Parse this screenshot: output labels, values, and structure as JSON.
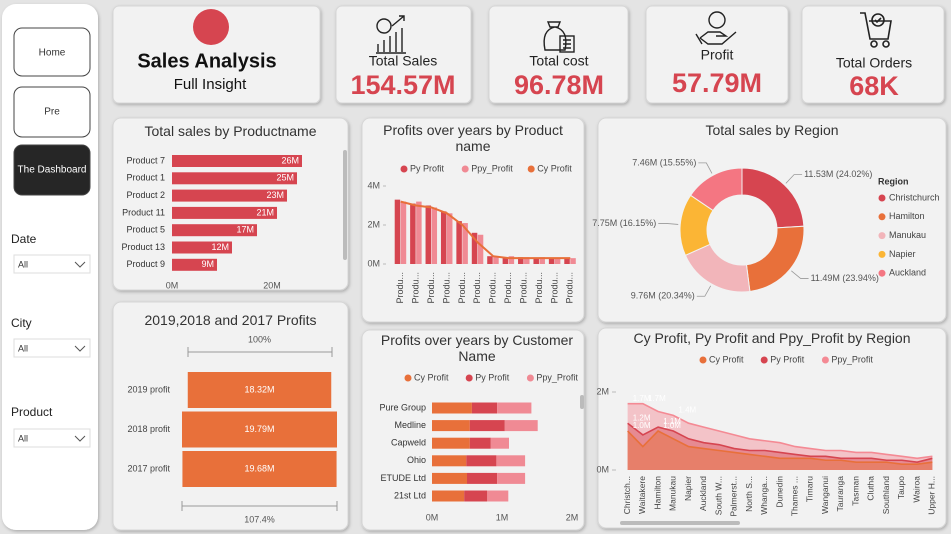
{
  "nav": {
    "buttons": [
      "Home",
      "Pre",
      "The Dashboard"
    ]
  },
  "filters": [
    {
      "label": "Date",
      "value": "All"
    },
    {
      "label": "City",
      "value": "All"
    },
    {
      "label": "Product",
      "value": "All"
    }
  ],
  "header": {
    "title": "Sales Analysis",
    "subtitle": "Full Insight"
  },
  "kpis": [
    {
      "label": "Total Sales",
      "value": "154.57M"
    },
    {
      "label": "Total cost",
      "value": "96.78M"
    },
    {
      "label": "Profit",
      "value": "57.79M"
    },
    {
      "label": "Total Orders",
      "value": "68K"
    }
  ],
  "chart_data": [
    {
      "type": "hbar",
      "title": "Total sales by Productname",
      "categories": [
        "Product 7",
        "Product 1",
        "Product 2",
        "Product 11",
        "Product 5",
        "Product 13",
        "Product 9"
      ],
      "values": [
        26,
        25,
        23,
        21,
        17,
        12,
        9
      ],
      "value_labels": [
        "26M",
        "25M",
        "23M",
        "21M",
        "17M",
        "12M",
        "9M"
      ],
      "color": "#d64550",
      "xlim": [
        0,
        33
      ],
      "xticks": [
        {
          "value": 0,
          "label": "0M"
        },
        {
          "value": 20,
          "label": "20M"
        }
      ]
    },
    {
      "type": "bar",
      "title": "Profits over years by Product name",
      "categories": [
        "Produ...",
        "Produ...",
        "Produ...",
        "Produ...",
        "Produ...",
        "Produ...",
        "Produ...",
        "Produ...",
        "Produ...",
        "Produ...",
        "Produ...",
        "Produ..."
      ],
      "series": [
        {
          "name": "Py Profit",
          "color": "#d64550",
          "values": [
            3.3,
            3.1,
            3.0,
            2.7,
            2.2,
            1.6,
            0.4,
            0.35,
            0.35,
            0.3,
            0.3,
            0.3
          ]
        },
        {
          "name": "Ppy_Profit",
          "color": "#f08a94",
          "values": [
            3.2,
            3.2,
            2.9,
            2.6,
            2.1,
            1.5,
            0.4,
            0.4,
            0.35,
            0.35,
            0.3,
            0.3
          ]
        },
        {
          "name": "Cy Profit",
          "color": "#e8703a",
          "mark": "line",
          "values": [
            3.2,
            3.0,
            2.9,
            2.6,
            2.0,
            1.1,
            0.4,
            0.3,
            0.3,
            0.3,
            0.3,
            0.3
          ]
        }
      ],
      "ylim": [
        0,
        4.5
      ],
      "yticks": [
        {
          "value": 0,
          "label": "0M"
        },
        {
          "value": 2,
          "label": "2M"
        },
        {
          "value": 4,
          "label": "4M"
        }
      ]
    },
    {
      "type": "pie",
      "donut": true,
      "title": "Total sales by Region",
      "legend_title": "Region",
      "legend": "right",
      "categories": [
        "Christchurch",
        "Hamilton",
        "Manukau",
        "Napier",
        "Auckland"
      ],
      "values": [
        11.53,
        11.49,
        9.76,
        7.75,
        7.46
      ],
      "value_labels": [
        "11.53M (24.02%)",
        "11.49M (23.94%)",
        "9.76M (20.34%)",
        "7.75M (16.15%)",
        "7.46M (15.55%)"
      ],
      "colors": [
        "#d64550",
        "#e8703a",
        "#f2b5ba",
        "#fbb535",
        "#f47682"
      ]
    },
    {
      "type": "funnel",
      "title": "2019,2018 and 2017 Profits",
      "categories": [
        "2019 profit",
        "2018 profit",
        "2017 profit"
      ],
      "values": [
        18.32,
        19.79,
        19.68
      ],
      "value_labels": [
        "18.32M",
        "19.79M",
        "19.68M"
      ],
      "color": "#e8703a",
      "annotations": {
        "top": "100%",
        "bottom": "107.4%"
      }
    },
    {
      "type": "stacked_hbar",
      "title": "Profits over years by Customer Name",
      "categories": [
        "Pure Group",
        "Medline",
        "Capweld",
        "Ohio",
        "ETUDE Ltd",
        "21st Ltd"
      ],
      "series": [
        {
          "name": "Cy Profit",
          "color": "#e8703a",
          "values": [
            0.57,
            0.54,
            0.54,
            0.49,
            0.5,
            0.46
          ]
        },
        {
          "name": "Py Profit",
          "color": "#d64550",
          "values": [
            0.36,
            0.5,
            0.3,
            0.43,
            0.43,
            0.33
          ]
        },
        {
          "name": "Ppy_Profit",
          "color": "#f08a94",
          "values": [
            0.49,
            0.47,
            0.26,
            0.41,
            0.4,
            0.3
          ]
        }
      ],
      "xlim": [
        0,
        2
      ],
      "xticks": [
        {
          "value": 0,
          "label": "0M"
        },
        {
          "value": 1,
          "label": "1M"
        },
        {
          "value": 2,
          "label": "2M"
        }
      ]
    },
    {
      "type": "area",
      "title": "Cy Profit, Py Profit and Ppy_Profit by Region",
      "categories": [
        "Christch...",
        "Waitakere",
        "Hamilton",
        "Manukau",
        "Napier",
        "Auckland",
        "South W...",
        "Palmerst...",
        "North S...",
        "Whanga...",
        "Dunedin",
        "Thames ...",
        "Timaru",
        "Wanganui",
        "Tauranga",
        "Tasman",
        "Clutha",
        "Southland",
        "Taupo",
        "Wairoa",
        "Upper H..."
      ],
      "series": [
        {
          "name": "Cy Profit",
          "color": "#e8703a",
          "values": [
            1.0,
            0.6,
            1.0,
            0.8,
            0.6,
            0.55,
            0.5,
            0.45,
            0.4,
            0.35,
            0.3,
            0.3,
            0.3,
            0.25,
            0.25,
            0.2,
            0.2,
            0.2,
            0.15,
            0.15,
            0.2
          ],
          "value_labels": [
            "1.0M",
            null,
            "1.0M",
            null,
            null,
            null,
            null,
            null,
            null,
            null,
            null,
            null,
            null,
            null,
            null,
            null,
            null,
            null,
            null,
            null,
            null
          ]
        },
        {
          "name": "Py Profit",
          "color": "#d64550",
          "values": [
            1.2,
            0.9,
            1.1,
            1.0,
            0.8,
            0.7,
            0.65,
            0.55,
            0.5,
            0.5,
            0.45,
            0.4,
            0.35,
            0.35,
            0.3,
            0.3,
            0.3,
            0.25,
            0.25,
            0.2,
            0.3
          ],
          "value_labels": [
            "1.2M",
            null,
            "1.1M",
            null,
            null,
            null,
            null,
            null,
            null,
            null,
            null,
            null,
            null,
            null,
            null,
            null,
            null,
            null,
            null,
            null,
            null
          ]
        },
        {
          "name": "Ppy_Profit",
          "color": "#f48a94",
          "values": [
            1.7,
            1.7,
            1.5,
            1.4,
            1.2,
            1.1,
            1.0,
            0.9,
            0.8,
            0.75,
            0.7,
            0.6,
            0.55,
            0.5,
            0.5,
            0.45,
            0.45,
            0.4,
            0.35,
            0.3,
            0.35
          ],
          "value_labels": [
            "1.7M",
            "1.7M",
            null,
            "1.4M",
            null,
            null,
            null,
            null,
            null,
            null,
            null,
            null,
            null,
            null,
            null,
            null,
            null,
            null,
            null,
            null,
            null
          ]
        }
      ],
      "ylim": [
        0,
        2.2
      ],
      "yticks": [
        {
          "value": 0,
          "label": "0M"
        },
        {
          "value": 2,
          "label": "2M"
        }
      ]
    }
  ]
}
